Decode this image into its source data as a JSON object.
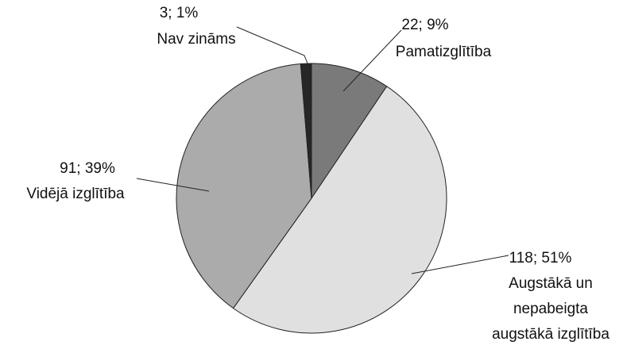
{
  "chart_data": {
    "type": "pie",
    "categories": [
      "Pamatizglītība",
      "Augstākā un\nnepabeigta\naugstākā izglītība",
      "Vidējā izglītība",
      "Nav zināms"
    ],
    "values": [
      22,
      118,
      91,
      3
    ],
    "value_labels": [
      "22; 9%",
      "118; 51%",
      "91; 39%",
      "3; 1%"
    ],
    "colors": [
      "#7a7a7a",
      "#e0e0e0",
      "#ababab",
      "#262626"
    ]
  }
}
